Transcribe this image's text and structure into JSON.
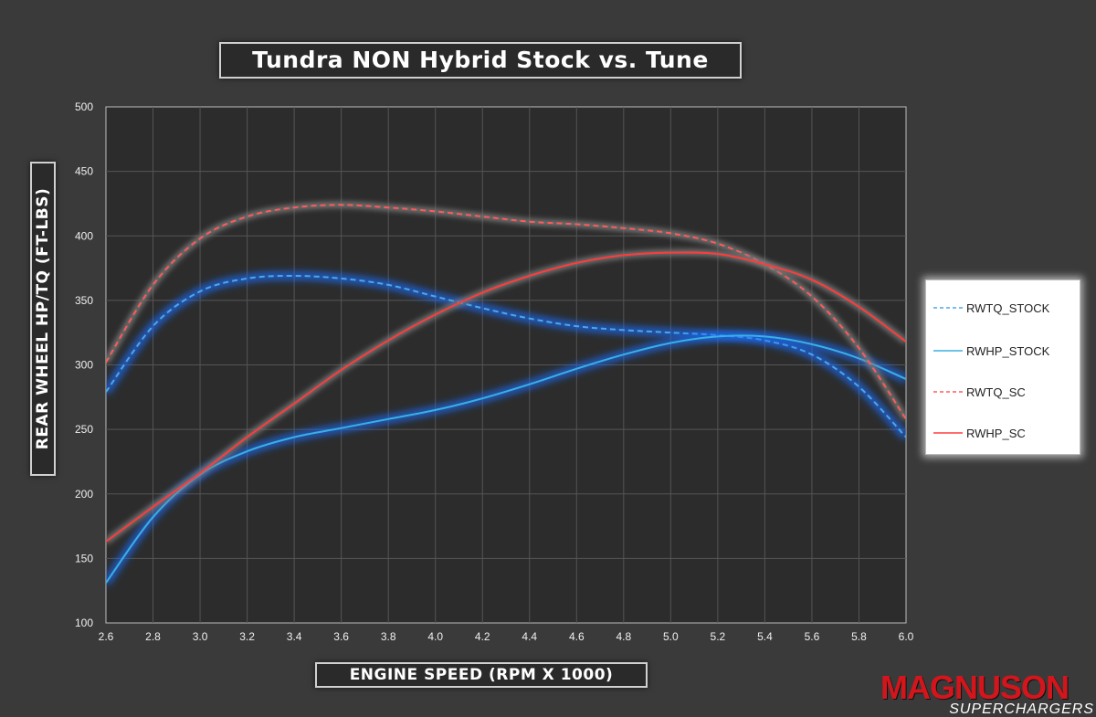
{
  "chart_data": {
    "type": "line",
    "title": "Tundra NON Hybrid Stock vs. Tune",
    "xlabel": "ENGINE SPEED (RPM X 1000)",
    "ylabel": "REAR WHEEL HP/TQ (FT-LBS)",
    "xlim": [
      2.6,
      6.0
    ],
    "ylim": [
      100,
      500
    ],
    "xticks": [
      "2.6",
      "2.8",
      "3.0",
      "3.2",
      "3.4",
      "3.6",
      "3.8",
      "4.0",
      "4.2",
      "4.4",
      "4.6",
      "4.8",
      "5.0",
      "5.2",
      "5.4",
      "5.6",
      "5.8",
      "6.0"
    ],
    "yticks": [
      "100",
      "150",
      "200",
      "250",
      "300",
      "350",
      "400",
      "450",
      "500"
    ],
    "grid": true,
    "legend_position": "right",
    "x": [
      2.6,
      2.8,
      3.0,
      3.2,
      3.4,
      3.6,
      3.8,
      4.0,
      4.2,
      4.4,
      4.6,
      4.8,
      5.0,
      5.2,
      5.4,
      5.6,
      5.8,
      6.0
    ],
    "series": [
      {
        "name": "RWTQ_STOCK",
        "color": "#4aa8e8",
        "style": "dashed",
        "values": [
          279,
          330,
          357,
          367,
          369,
          367,
          362,
          353,
          344,
          336,
          330,
          327,
          325,
          323,
          319,
          308,
          283,
          244
        ]
      },
      {
        "name": "RWHP_STOCK",
        "color": "#3ab0e0",
        "style": "solid",
        "values": [
          131,
          182,
          215,
          233,
          244,
          251,
          258,
          265,
          274,
          285,
          297,
          308,
          317,
          322,
          322,
          316,
          305,
          289
        ]
      },
      {
        "name": "RWTQ_SC",
        "color": "#ff5a5a",
        "style": "dashed",
        "values": [
          302,
          362,
          398,
          415,
          422,
          424,
          422,
          419,
          415,
          411,
          409,
          406,
          402,
          394,
          378,
          353,
          313,
          258
        ]
      },
      {
        "name": "RWHP_SC",
        "color": "#ff3b3b",
        "style": "solid",
        "values": [
          163,
          190,
          216,
          244,
          270,
          296,
          319,
          339,
          356,
          369,
          379,
          385,
          387,
          386,
          378,
          366,
          345,
          318
        ]
      }
    ]
  },
  "logo": {
    "main": "MAGNUSON",
    "sub": "SUPERCHARGERS"
  }
}
